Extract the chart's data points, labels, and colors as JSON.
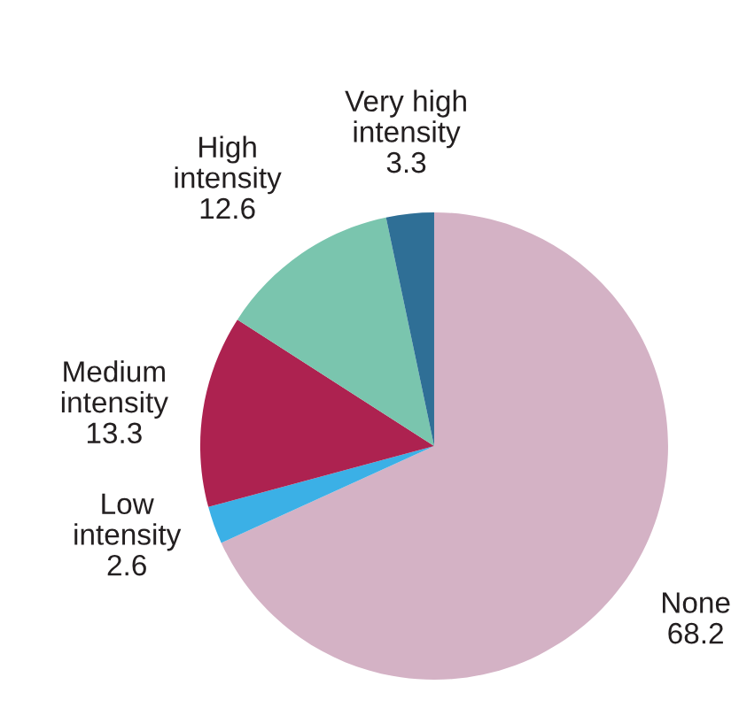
{
  "chart_data": {
    "type": "pie",
    "categories": [
      "None",
      "Low intensity",
      "Medium intensity",
      "High intensity",
      "Very high intensity"
    ],
    "values": [
      68.2,
      2.6,
      13.3,
      12.6,
      3.3
    ],
    "colors": [
      "#d4b2c5",
      "#3bb0e6",
      "#ad2250",
      "#7ac5ae",
      "#2f6f96"
    ],
    "data_labels": true
  }
}
